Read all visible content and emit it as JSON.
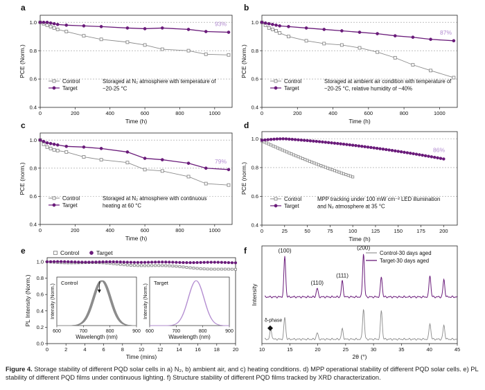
{
  "caption": {
    "label": "Figure 4.",
    "text": "Storage stability of different PQD solar cells in a) N₂, b) ambient air, and c) heating conditions. d) MPP operational stability of different PQD solar cells. e) PL stability of different PQD films under continuous lighting. f) Structure stability of different PQD films tracked by XRD characterization."
  },
  "colors": {
    "control": "#8a8a8a",
    "target": "#6a1b7a",
    "annot": "#b28bd0",
    "grid": "#9a9a9a"
  },
  "chart_data": [
    {
      "panel": "a",
      "type": "line",
      "xlabel": "Time (h)",
      "ylabel": "PCE (Norm.)",
      "xlim": [
        0,
        1100
      ],
      "ylim": [
        0.4,
        1.05
      ],
      "xticks": [
        0,
        200,
        400,
        600,
        800,
        1000
      ],
      "yticks": [
        0.4,
        0.6,
        0.8,
        1.0
      ],
      "ytick_labels": [
        "0.4",
        "0.6",
        "0.8",
        "1.0"
      ],
      "annotation": "93%",
      "note_lines": [
        "Storaged at N₂ atmosphere with temperature of",
        "~20-25 °C"
      ],
      "series": [
        {
          "name": "Control",
          "x": [
            0,
            20,
            40,
            60,
            80,
            100,
            150,
            250,
            350,
            500,
            600,
            700,
            850,
            950,
            1080
          ],
          "y": [
            1.0,
            0.99,
            0.98,
            0.97,
            0.96,
            0.95,
            0.935,
            0.905,
            0.88,
            0.86,
            0.84,
            0.81,
            0.8,
            0.775,
            0.77
          ]
        },
        {
          "name": "Target",
          "x": [
            0,
            20,
            40,
            60,
            80,
            100,
            150,
            250,
            350,
            500,
            600,
            700,
            850,
            950,
            1080
          ],
          "y": [
            1.0,
            1.0,
            1.0,
            0.995,
            0.99,
            0.985,
            0.98,
            0.975,
            0.97,
            0.96,
            0.955,
            0.96,
            0.95,
            0.935,
            0.93
          ]
        }
      ]
    },
    {
      "panel": "b",
      "type": "line",
      "xlabel": "Time (h)",
      "ylabel": "PCE (Norm.)",
      "xlim": [
        0,
        1100
      ],
      "ylim": [
        0.4,
        1.05
      ],
      "xticks": [
        0,
        200,
        400,
        600,
        800,
        1000
      ],
      "yticks": [
        0.4,
        0.6,
        0.8,
        1.0
      ],
      "ytick_labels": [
        "0.4",
        "0.6",
        "0.8",
        "1.0"
      ],
      "annotation": "87%",
      "note_lines": [
        "Storaged at ambient air condition with temperature of",
        "~20-25 °C, relative humidity of ~40%"
      ],
      "series": [
        {
          "name": "Control",
          "x": [
            0,
            20,
            40,
            60,
            80,
            100,
            150,
            250,
            350,
            450,
            550,
            650,
            750,
            850,
            950,
            1080
          ],
          "y": [
            1.0,
            0.98,
            0.96,
            0.95,
            0.94,
            0.925,
            0.9,
            0.87,
            0.85,
            0.84,
            0.82,
            0.79,
            0.75,
            0.7,
            0.66,
            0.61
          ]
        },
        {
          "name": "Target",
          "x": [
            0,
            20,
            40,
            60,
            80,
            100,
            150,
            250,
            350,
            450,
            550,
            650,
            750,
            850,
            950,
            1080
          ],
          "y": [
            1.0,
            0.995,
            0.99,
            0.985,
            0.98,
            0.975,
            0.97,
            0.96,
            0.95,
            0.94,
            0.93,
            0.92,
            0.905,
            0.895,
            0.88,
            0.87
          ]
        }
      ]
    },
    {
      "panel": "c",
      "type": "line",
      "xlabel": "Time (h)",
      "ylabel": "PCE (norm.)",
      "xlim": [
        0,
        1100
      ],
      "ylim": [
        0.4,
        1.05
      ],
      "xticks": [
        0,
        200,
        400,
        600,
        800,
        1000
      ],
      "yticks": [
        0.4,
        0.6,
        0.8,
        1.0
      ],
      "ytick_labels": [
        "0.4",
        "0.6",
        "0.8",
        "1.0"
      ],
      "annotation": "79%",
      "note_lines": [
        "Storaged at N₂ atmosphere with continuous",
        "heating at 60 °C"
      ],
      "series": [
        {
          "name": "Control",
          "x": [
            0,
            20,
            40,
            60,
            80,
            100,
            150,
            250,
            350,
            500,
            600,
            700,
            850,
            950,
            1080
          ],
          "y": [
            1.0,
            0.97,
            0.95,
            0.94,
            0.93,
            0.925,
            0.915,
            0.88,
            0.86,
            0.84,
            0.79,
            0.78,
            0.74,
            0.69,
            0.68
          ]
        },
        {
          "name": "Target",
          "x": [
            0,
            20,
            40,
            60,
            80,
            100,
            150,
            250,
            350,
            500,
            600,
            700,
            850,
            950,
            1080
          ],
          "y": [
            1.0,
            0.99,
            0.98,
            0.975,
            0.97,
            0.965,
            0.955,
            0.95,
            0.94,
            0.915,
            0.87,
            0.86,
            0.835,
            0.8,
            0.79
          ]
        }
      ]
    },
    {
      "panel": "d",
      "type": "line",
      "xlabel": "Time (h)",
      "ylabel": "PCE (norm.)",
      "xlim": [
        0,
        215
      ],
      "ylim": [
        0.4,
        1.05
      ],
      "xticks": [
        0,
        25,
        50,
        75,
        100,
        125,
        150,
        175,
        200
      ],
      "yticks": [
        0.4,
        0.6,
        0.8,
        1.0
      ],
      "ytick_labels": [
        "0.4",
        "0.6",
        "0.8",
        "1.0"
      ],
      "annotation": "86%",
      "note_lines": [
        "MPP tracking under 100 mW cm⁻² LED illumination",
        "and N₂ atmosphere at 35 °C"
      ],
      "series": [
        {
          "name": "Control",
          "x_range": [
            0,
            100
          ],
          "shape": "linear",
          "y_start": 0.985,
          "y_end": 0.735,
          "n_markers": 41
        },
        {
          "name": "Target",
          "x_range": [
            0,
            200
          ],
          "shape": "peaked",
          "y_start": 0.99,
          "y_peak": 1.0,
          "x_peak": 25,
          "y_end": 0.86,
          "n_markers": 61
        }
      ]
    },
    {
      "panel": "e",
      "type": "line",
      "xlabel": "Time (mins)",
      "ylabel": "PL Intensity (Norm.)",
      "xlim": [
        0,
        20
      ],
      "ylim": [
        0.0,
        1.05
      ],
      "xticks": [
        0,
        2,
        4,
        6,
        8,
        10,
        12,
        14,
        16,
        18,
        20
      ],
      "yticks": [
        0.0,
        0.2,
        0.4,
        0.6,
        0.8,
        1.0
      ],
      "ytick_labels": [
        "0.0",
        "0.2",
        "0.4",
        "0.6",
        "0.8",
        "1.0"
      ],
      "series": [
        {
          "name": "Control",
          "x_range": [
            0,
            20
          ],
          "shape": "decay",
          "y_start": 1.0,
          "y_end": 0.9,
          "n_markers": 55
        },
        {
          "name": "Target",
          "x_range": [
            0,
            20
          ],
          "shape": "flat",
          "y_start": 1.0,
          "y_end": 0.99,
          "n_markers": 55
        }
      ],
      "insets": [
        {
          "title": "Control",
          "xlabel": "Wavelength (nm)",
          "ylabel": "Intensity (Norm.)",
          "xlim": [
            600,
            900
          ],
          "xticks": [
            600,
            700,
            800,
            900
          ],
          "peak_nm": 770,
          "fwhm_nm": 75,
          "n_curves": 6,
          "color": "#8a8a8a"
        },
        {
          "title": "Target",
          "xlabel": "Wavelength (nm)",
          "ylabel": "Intensity (Norm.)",
          "xlim": [
            600,
            900
          ],
          "xticks": [
            600,
            700,
            800,
            900
          ],
          "peak_nm": 775,
          "fwhm_nm": 70,
          "n_curves": 2,
          "color": "#b28bd0"
        }
      ]
    },
    {
      "panel": "f",
      "type": "line",
      "xlabel": "2θ (°)",
      "ylabel": "Intensity",
      "xlim": [
        10,
        45
      ],
      "xticks": [
        10,
        15,
        20,
        25,
        30,
        35,
        40,
        45
      ],
      "series": [
        {
          "name": "Control-30 days aged",
          "offset": 0.0,
          "peaks": [
            {
              "x": 11.6,
              "h": 0.35
            },
            {
              "x": 14.1,
              "h": 0.75
            },
            {
              "x": 19.9,
              "h": 0.22
            },
            {
              "x": 24.4,
              "h": 0.35
            },
            {
              "x": 28.2,
              "h": 1.05
            },
            {
              "x": 31.4,
              "h": 1.0
            },
            {
              "x": 40.1,
              "h": 0.55
            },
            {
              "x": 42.6,
              "h": 0.48
            }
          ]
        },
        {
          "name": "Target-30 days aged",
          "offset": 1.45,
          "peaks": [
            {
              "x": 14.1,
              "h": 1.4
            },
            {
              "x": 19.9,
              "h": 0.3
            },
            {
              "x": 24.4,
              "h": 0.55
            },
            {
              "x": 28.2,
              "h": 1.5
            },
            {
              "x": 31.4,
              "h": 0.7
            },
            {
              "x": 40.1,
              "h": 0.75
            },
            {
              "x": 42.6,
              "h": 0.6
            }
          ]
        }
      ],
      "peak_labels": [
        {
          "text": "(100)",
          "x": 14.1
        },
        {
          "text": "(110)",
          "x": 19.9
        },
        {
          "text": "(111)",
          "x": 24.4
        },
        {
          "text": "(200)",
          "x": 28.2
        }
      ],
      "delta_label": "δ-phase"
    }
  ]
}
